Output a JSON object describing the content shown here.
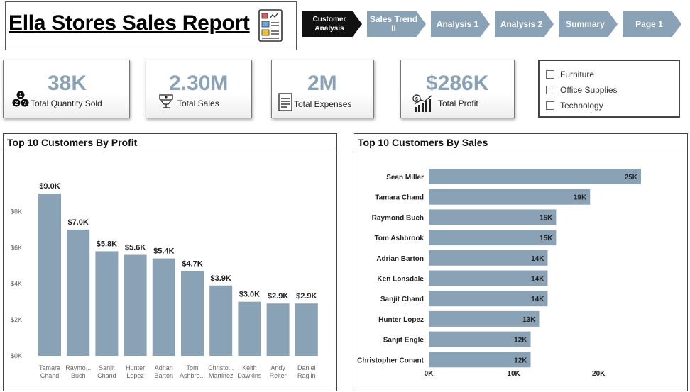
{
  "title": "Ella Stores Sales Report",
  "nav": [
    {
      "label": "Customer Analysis",
      "active": true
    },
    {
      "label": "Sales Trend II",
      "active": false
    },
    {
      "label": "Analysis 1",
      "active": false
    },
    {
      "label": "Analysis 2",
      "active": false
    },
    {
      "label": "Summary",
      "active": false
    },
    {
      "label": "Page 1",
      "active": false
    }
  ],
  "kpis": {
    "quantity": {
      "value": "38K",
      "label": "Total Quantity Sold"
    },
    "sales": {
      "value": "2.30M",
      "label": "Total Sales"
    },
    "expenses": {
      "value": "2M",
      "label": "Total Expenses"
    },
    "profit": {
      "value": "$286K",
      "label": "Total Profit"
    }
  },
  "slicer": {
    "items": [
      "Furniture",
      "Office Supplies",
      "Technology"
    ]
  },
  "colors": {
    "bar": "#8aa2b6",
    "accent_dark": "#111111"
  },
  "chart_data": [
    {
      "type": "bar",
      "title": "Top 10 Customers By Profit",
      "orientation": "vertical",
      "categories": [
        [
          "Tamara",
          "Chand"
        ],
        [
          "Raymo...",
          "Buch"
        ],
        [
          "Sanjit",
          "Chand"
        ],
        [
          "Hunter",
          "Lopez"
        ],
        [
          "Adrian",
          "Barton"
        ],
        [
          "Tom",
          "Ashbro..."
        ],
        [
          "Christo...",
          "Martinez"
        ],
        [
          "Keith",
          "Dawkins"
        ],
        [
          "Andy",
          "Reiter"
        ],
        [
          "Daniel",
          "Raglin"
        ]
      ],
      "values": [
        9000,
        7000,
        5800,
        5600,
        5400,
        4700,
        3900,
        3000,
        2900,
        2900
      ],
      "data_labels": [
        "$9.0K",
        "$7.0K",
        "$5.8K",
        "$5.6K",
        "$5.4K",
        "$4.7K",
        "$3.9K",
        "$3.0K",
        "$2.9K",
        "$2.9K"
      ],
      "y_ticks": [
        0,
        2000,
        4000,
        6000,
        8000
      ],
      "y_tick_labels": [
        "$0K",
        "$2K",
        "$4K",
        "$6K",
        "$8K"
      ],
      "ylim": [
        0,
        9000
      ],
      "grid": false
    },
    {
      "type": "bar",
      "title": "Top 10 Customers By Sales",
      "orientation": "horizontal",
      "categories": [
        "Sean Miller",
        "Tamara Chand",
        "Raymond Buch",
        "Tom Ashbrook",
        "Adrian Barton",
        "Ken Lonsdale",
        "Sanjit Chand",
        "Hunter Lopez",
        "Sanjit Engle",
        "Christopher Conant"
      ],
      "values": [
        25000,
        19000,
        15000,
        15000,
        14000,
        14000,
        14000,
        13000,
        12000,
        12000
      ],
      "data_labels": [
        "25K",
        "19K",
        "15K",
        "15K",
        "14K",
        "14K",
        "14K",
        "13K",
        "12K",
        "12K"
      ],
      "x_ticks": [
        0,
        10000,
        20000
      ],
      "x_tick_labels": [
        "0K",
        "10K",
        "20K"
      ],
      "xlim": [
        0,
        30000
      ],
      "grid": false
    }
  ]
}
